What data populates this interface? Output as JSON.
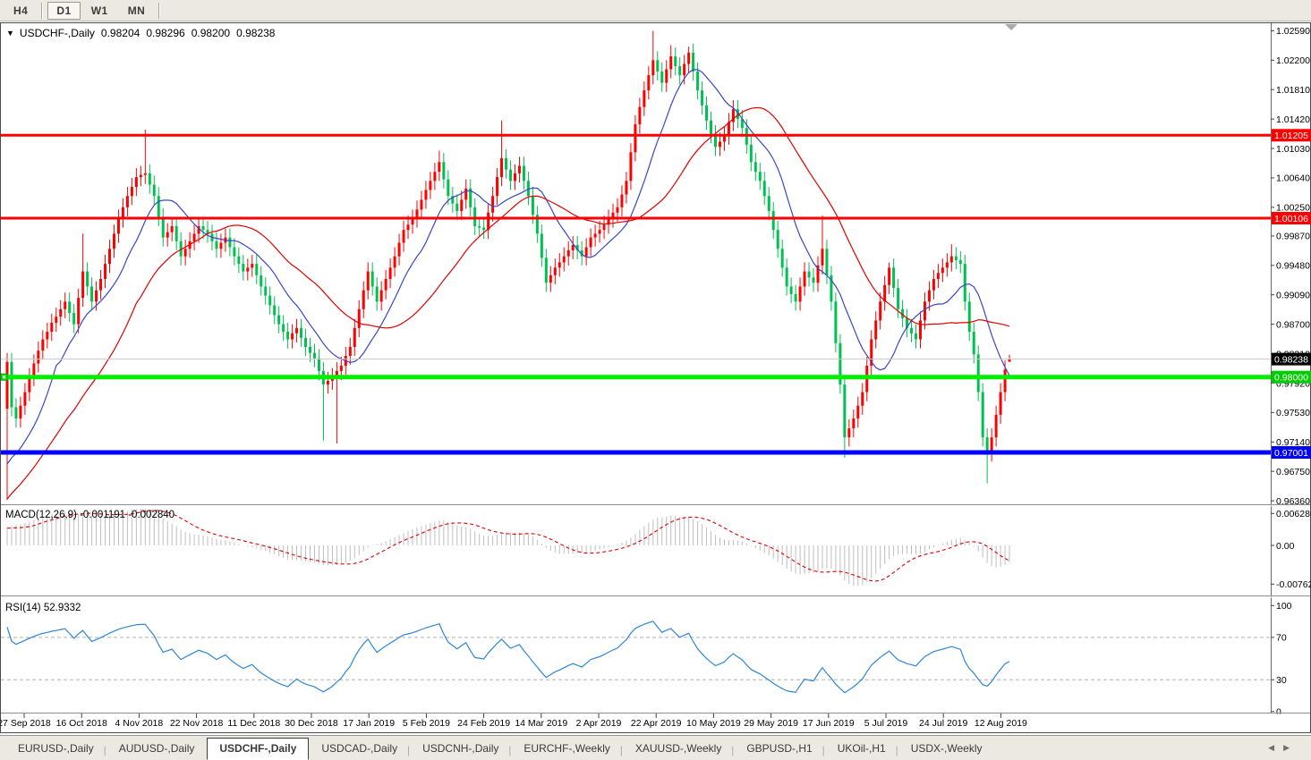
{
  "toolbar": {
    "buttons": [
      {
        "label": "H4",
        "active": false
      },
      {
        "label": "D1",
        "active": true
      },
      {
        "label": "W1",
        "active": false
      },
      {
        "label": "MN",
        "active": false
      }
    ]
  },
  "chart": {
    "title": {
      "symbol": "USDCHF-,Daily",
      "open": "0.98204",
      "high": "0.98296",
      "low": "0.98200",
      "close": "0.98238"
    }
  },
  "price_axis": {
    "ticks": [
      "1.02590",
      "1.02200",
      "1.01810",
      "1.01420",
      "1.01030",
      "1.00640",
      "1.00250",
      "0.99870",
      "0.99480",
      "0.99090",
      "0.98700",
      "0.98310",
      "0.97920",
      "0.97530",
      "0.97140",
      "0.96750",
      "0.96360"
    ],
    "current_badge": {
      "label": "0.98238",
      "price": 0.98238,
      "bg": "#000000",
      "fg": "#ffffff"
    }
  },
  "hlines": [
    {
      "label": "1.01205",
      "price": 1.01205,
      "color": "#ff0000",
      "thickness": 3
    },
    {
      "label": "1.00106",
      "price": 1.00106,
      "color": "#ff0000",
      "thickness": 3
    },
    {
      "label": "0.98000",
      "price": 0.98,
      "color": "#00ee00",
      "thickness": 5,
      "anchor": true
    },
    {
      "label": "0.97001",
      "price": 0.97001,
      "color": "#0000ff",
      "thickness": 5
    }
  ],
  "date_axis": {
    "labels": [
      "27 Sep 2018",
      "16 Oct 2018",
      "4 Nov 2018",
      "22 Nov 2018",
      "11 Dec 2018",
      "30 Dec 2018",
      "17 Jan 2019",
      "5 Feb 2019",
      "24 Feb 2019",
      "14 Mar 2019",
      "2 Apr 2019",
      "22 Apr 2019",
      "10 May 2019",
      "29 May 2019",
      "17 Jun 2019",
      "5 Jul 2019",
      "24 Jul 2019",
      "12 Aug 2019"
    ]
  },
  "macd_panel": {
    "label": "MACD(12,26,9)",
    "values": "-0.001191 -0.002840",
    "axis": [
      {
        "label": "0.006286",
        "value": 0.006286
      },
      {
        "label": "0.00",
        "value": 0
      },
      {
        "label": "-0.00762",
        "value": -0.00762
      }
    ],
    "params": {
      "fast": 12,
      "slow": 26,
      "signal": 9
    }
  },
  "rsi_panel": {
    "label": "RSI(14)",
    "value": "52.9332",
    "period": 14,
    "axis": [
      {
        "label": "100",
        "value": 100
      },
      {
        "label": "70",
        "value": 70
      },
      {
        "label": "30",
        "value": 30
      },
      {
        "label": "0",
        "value": 0
      }
    ],
    "levels": [
      70,
      30
    ]
  },
  "tabbar": {
    "active_index": 2,
    "tabs": [
      {
        "label": "EURUSD-,Daily"
      },
      {
        "label": "AUDUSD-,Daily"
      },
      {
        "label": "USDCHF-,Daily"
      },
      {
        "label": "USDCAD-,Daily"
      },
      {
        "label": "USDCNH-,Daily"
      },
      {
        "label": "EURCHF-,Weekly"
      },
      {
        "label": "XAUUSD-,Weekly"
      },
      {
        "label": "GBPUSD-,H1"
      },
      {
        "label": "UKOil-,H1"
      },
      {
        "label": "USDX-,Weekly"
      }
    ]
  },
  "colors": {
    "candle_up": "#ff0000",
    "candle_down": "#00c050",
    "ma_fast": "#3a46c8",
    "ma_slow": "#e00000",
    "macd_hist": "#bebebe",
    "macd_signal": "#e00000",
    "rsi_line": "#2e86d7",
    "bid_line": "#c8c8c8",
    "axis_text": "#000000",
    "panel_border": "#8c8c8c",
    "window_border": "#4a4a4a",
    "shift_marker": "#a9a9a9"
  },
  "chart_data": {
    "type": "candlestick",
    "symbol": "USDCHF",
    "timeframe": "Daily",
    "view_price_min": 0.9606,
    "view_price_max": 1.0264,
    "current_price": 0.98238,
    "last_candle": {
      "open": 0.98204,
      "high": 0.98296,
      "low": 0.982,
      "close": 0.98238
    },
    "default_wick": 0.0012,
    "ma_fast_period": 12,
    "ma_slow_period": 30,
    "closes": [
      0.982,
      0.976,
      0.9745,
      0.9762,
      0.978,
      0.98,
      0.9818,
      0.9835,
      0.985,
      0.986,
      0.9872,
      0.988,
      0.989,
      0.99,
      0.9885,
      0.987,
      0.9905,
      0.994,
      0.992,
      0.99,
      0.9915,
      0.993,
      0.995,
      0.997,
      0.999,
      1.001,
      1.0025,
      1.004,
      1.0052,
      1.0065,
      1.0068,
      1.007,
      1.0055,
      1.004,
      1.0012,
      0.9985,
      0.9992,
      1.0,
      0.998,
      0.996,
      0.997,
      0.998,
      0.999,
      1.0,
      0.9995,
      0.999,
      0.998,
      0.997,
      0.9978,
      0.9985,
      0.9972,
      0.996,
      0.995,
      0.994,
      0.9945,
      0.995,
      0.9935,
      0.992,
      0.9908,
      0.9895,
      0.9882,
      0.987,
      0.986,
      0.985,
      0.9858,
      0.9865,
      0.9852,
      0.984,
      0.9832,
      0.9825,
      0.9808,
      0.979,
      0.9795,
      0.98,
      0.9808,
      0.9815,
      0.9828,
      0.984,
      0.9865,
      0.989,
      0.9915,
      0.994,
      0.992,
      0.99,
      0.9915,
      0.993,
      0.9945,
      0.996,
      0.9978,
      0.9995,
      1.0002,
      1.001,
      1.0022,
      1.0035,
      1.0048,
      1.006,
      1.0072,
      1.0085,
      1.0062,
      1.004,
      1.003,
      1.002,
      1.0035,
      1.005,
      1.0025,
      1.0,
      0.9998,
      0.9995,
      1.0018,
      1.004,
      1.0065,
      1.009,
      1.0075,
      1.006,
      1.007,
      1.008,
      1.006,
      1.004,
      1.0015,
      0.999,
      0.9958,
      0.9925,
      0.9935,
      0.9945,
      0.9952,
      0.996,
      0.9968,
      0.9975,
      0.9968,
      0.996,
      0.9972,
      0.9985,
      0.999,
      0.9995,
      1.0002,
      1.001,
      1.0018,
      1.0025,
      1.0042,
      1.006,
      1.0098,
      1.0135,
      1.0158,
      1.018,
      1.02,
      1.022,
      1.0205,
      1.019,
      1.0208,
      1.0225,
      1.0212,
      1.02,
      1.0215,
      1.023,
      1.0205,
      1.018,
      1.016,
      1.014,
      1.0122,
      1.0105,
      1.0112,
      1.012,
      1.0138,
      1.0155,
      1.0142,
      1.013,
      1.0108,
      1.0085,
      1.0072,
      1.006,
      1.004,
      1.002,
      0.9995,
      0.997,
      0.9945,
      0.992,
      0.991,
      0.99,
      0.992,
      0.994,
      0.9932,
      0.9925,
      0.9948,
      0.997,
      0.9935,
      0.99,
      0.9845,
      0.979,
      0.972,
      0.9732,
      0.9745,
      0.9762,
      0.978,
      0.9815,
      0.985,
      0.9875,
      0.99,
      0.9922,
      0.9945,
      0.9918,
      0.989,
      0.9878,
      0.9865,
      0.9858,
      0.985,
      0.9875,
      0.99,
      0.9915,
      0.993,
      0.9938,
      0.9945,
      0.9952,
      0.996,
      0.9955,
      0.995,
      0.99,
      0.986,
      0.983,
      0.978,
      0.972,
      0.97,
      0.972,
      0.975,
      0.978,
      0.981,
      0.98238
    ],
    "pre_closes": [
      0.9482,
      0.949,
      0.9475,
      0.95,
      0.9512,
      0.9505,
      0.952,
      0.9535,
      0.9528,
      0.9545,
      0.955,
      0.9542,
      0.956,
      0.9572,
      0.9565,
      0.958,
      0.9592,
      0.9585,
      0.96,
      0.9612,
      0.9605,
      0.9618,
      0.963,
      0.9622,
      0.9638,
      0.965,
      0.9642,
      0.9655,
      0.9668,
      0.966,
      0.9672,
      0.968,
      0.967,
      0.9685,
      0.9695,
      0.9688,
      0.9678,
      0.9668,
      0.9655,
      0.9645
    ],
    "wick_overrides": {
      "0": {
        "o": 0.9758,
        "h": 0.9832,
        "l": 0.9637
      },
      "17": {
        "h": 0.999
      },
      "31": {
        "h": 1.0128
      },
      "71": {
        "l": 0.9716
      },
      "74": {
        "l": 0.9712
      },
      "97": {
        "h": 1.01
      },
      "111": {
        "h": 1.014
      },
      "145": {
        "h": 1.0259
      },
      "149": {
        "h": 1.024
      },
      "153": {
        "h": 1.0238
      },
      "183": {
        "h": 1.0014
      },
      "188": {
        "l": 0.9693
      },
      "198": {
        "h": 0.9952
      },
      "212": {
        "h": 0.9976
      },
      "220": {
        "l": 0.9659
      },
      "225": {
        "o": 0.98204,
        "h": 0.98296,
        "l": 0.982
      }
    }
  }
}
